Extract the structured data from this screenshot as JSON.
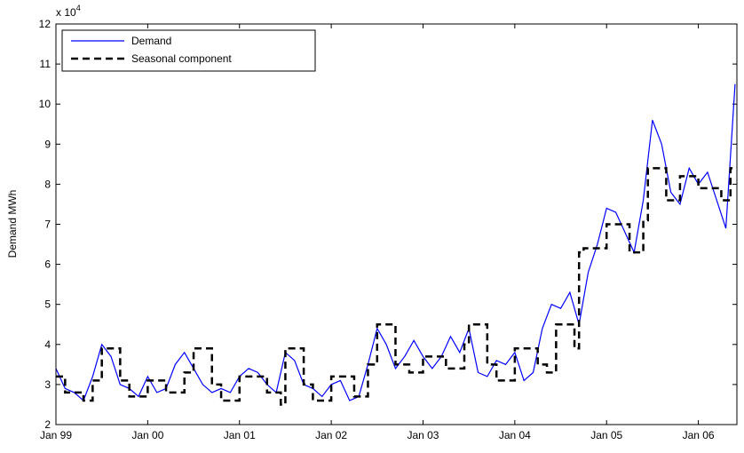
{
  "chart_data": {
    "type": "line",
    "ylabel": "Demand MWh",
    "y_multiplier": {
      "base": "x 10",
      "power": "4"
    },
    "xlim": [
      1999,
      2006.42
    ],
    "xticks": [
      {
        "value": 1999,
        "label": "Jan 99"
      },
      {
        "value": 2000,
        "label": "Jan 00"
      },
      {
        "value": 2001,
        "label": "Jan 01"
      },
      {
        "value": 2002,
        "label": "Jan 02"
      },
      {
        "value": 2003,
        "label": "Jan 03"
      },
      {
        "value": 2004,
        "label": "Jan 04"
      },
      {
        "value": 2005,
        "label": "Jan 05"
      },
      {
        "value": 2006,
        "label": "Jan 06"
      }
    ],
    "ylim": [
      2,
      12
    ],
    "yticks": [
      2,
      3,
      4,
      5,
      6,
      7,
      8,
      9,
      10,
      11,
      12
    ],
    "grid": false,
    "legend": "top-left",
    "series": [
      {
        "name": "Demand",
        "color": "#0000ff",
        "dash": "solid",
        "step": false,
        "x": [
          1999.0,
          1999.1,
          1999.2,
          1999.3,
          1999.4,
          1999.5,
          1999.6,
          1999.7,
          1999.8,
          1999.9,
          2000.0,
          2000.1,
          2000.2,
          2000.3,
          2000.4,
          2000.5,
          2000.6,
          2000.7,
          2000.8,
          2000.9,
          2001.0,
          2001.1,
          2001.2,
          2001.3,
          2001.4,
          2001.5,
          2001.6,
          2001.7,
          2001.8,
          2001.9,
          2002.0,
          2002.1,
          2002.2,
          2002.3,
          2002.4,
          2002.5,
          2002.6,
          2002.7,
          2002.8,
          2002.9,
          2003.0,
          2003.1,
          2003.2,
          2003.3,
          2003.4,
          2003.5,
          2003.6,
          2003.7,
          2003.8,
          2003.9,
          2004.0,
          2004.1,
          2004.2,
          2004.3,
          2004.4,
          2004.5,
          2004.6,
          2004.7,
          2004.8,
          2004.9,
          2005.0,
          2005.1,
          2005.2,
          2005.3,
          2005.4,
          2005.5,
          2005.6,
          2005.7,
          2005.8,
          2005.9,
          2006.0,
          2006.1,
          2006.2,
          2006.3,
          2006.4
        ],
        "values": [
          3.4,
          2.9,
          2.8,
          2.6,
          3.2,
          4.0,
          3.7,
          3.0,
          2.9,
          2.7,
          3.2,
          2.8,
          2.9,
          3.5,
          3.8,
          3.4,
          3.0,
          2.8,
          2.9,
          2.8,
          3.2,
          3.4,
          3.3,
          3.0,
          2.8,
          3.8,
          3.6,
          3.0,
          2.9,
          2.7,
          3.0,
          3.1,
          2.6,
          2.7,
          3.5,
          4.4,
          4.0,
          3.4,
          3.7,
          4.1,
          3.7,
          3.4,
          3.7,
          4.2,
          3.8,
          4.4,
          3.3,
          3.2,
          3.6,
          3.5,
          3.8,
          3.1,
          3.3,
          4.4,
          5.0,
          4.9,
          5.3,
          4.5,
          5.8,
          6.5,
          7.4,
          7.3,
          6.8,
          6.3,
          7.6,
          9.6,
          9.0,
          7.8,
          7.5,
          8.4,
          8.0,
          8.3,
          7.6,
          6.9,
          10.5
        ]
      },
      {
        "name": "Seasonal component",
        "color": "#000000",
        "dash": "dashed",
        "step": true,
        "x": [
          1999.0,
          1999.1,
          1999.3,
          1999.4,
          1999.5,
          1999.7,
          1999.8,
          2000.0,
          2000.2,
          2000.4,
          2000.5,
          2000.7,
          2000.8,
          2001.0,
          2001.3,
          2001.45,
          2001.5,
          2001.7,
          2001.8,
          2002.0,
          2002.25,
          2002.4,
          2002.5,
          2002.7,
          2002.85,
          2003.0,
          2003.25,
          2003.45,
          2003.5,
          2003.7,
          2003.8,
          2004.0,
          2004.25,
          2004.35,
          2004.45,
          2004.65,
          2004.7,
          2004.75,
          2005.0,
          2005.25,
          2005.4,
          2005.45,
          2005.65,
          2005.8,
          2006.0,
          2006.25,
          2006.35
        ],
        "values": [
          3.2,
          2.8,
          2.6,
          3.1,
          3.9,
          3.1,
          2.7,
          3.1,
          2.8,
          3.3,
          3.9,
          3.0,
          2.6,
          3.2,
          2.8,
          2.5,
          3.9,
          3.0,
          2.6,
          3.2,
          2.7,
          3.5,
          4.5,
          3.5,
          3.3,
          3.7,
          3.4,
          4.0,
          4.5,
          3.5,
          3.1,
          3.9,
          3.5,
          3.3,
          4.5,
          3.9,
          6.3,
          6.4,
          7.0,
          6.3,
          7.1,
          8.4,
          7.6,
          8.2,
          7.9,
          7.6,
          8.4
        ]
      }
    ]
  }
}
